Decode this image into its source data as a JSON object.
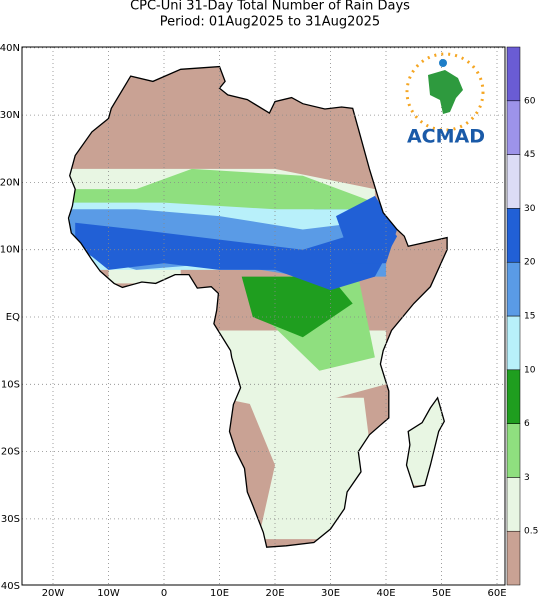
{
  "header": {
    "title": "CPC-Uni 31-Day Total Number of Rain Days",
    "subtitle": "Period: 01Aug2025 to 31Aug2025"
  },
  "map": {
    "lon_labels": [
      "20W",
      "10W",
      "0",
      "10E",
      "20E",
      "30E",
      "40E",
      "50E",
      "60E"
    ],
    "lat_labels": [
      "40N",
      "30N",
      "20N",
      "10N",
      "EQ",
      "10S",
      "20S",
      "30S",
      "40S"
    ]
  },
  "legend": {
    "labels": [
      "0.5",
      "3",
      "6",
      "10",
      "15",
      "20",
      "30",
      "45",
      "60"
    ],
    "colors": [
      "#c9a294",
      "#e8f6e3",
      "#8fdf7f",
      "#1f9e1f",
      "#b8f0fa",
      "#5a9be6",
      "#2160d6",
      "#dcdcf6",
      "#9d93ea",
      "#6a5cd4"
    ]
  },
  "logo": {
    "text": "ACMAD"
  }
}
